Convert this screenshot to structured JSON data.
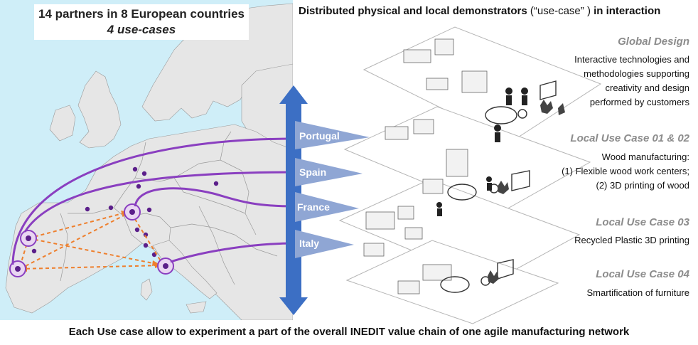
{
  "map_box": {
    "line1": "14 partners in 8 European countries",
    "line2": "4 use-cases"
  },
  "header": {
    "title_main": "Distributed physical and local demonstrators",
    "title_quote": "(“use-case” )",
    "title_end": "in interaction"
  },
  "countries": [
    "Portugal",
    "Spain",
    "France",
    "Italy"
  ],
  "use_cases": [
    {
      "title": "Global Design",
      "desc": [
        "Interactive technologies and",
        "methodologies supporting",
        "creativity and design",
        "performed by customers"
      ]
    },
    {
      "title": "Local Use Case 01 & 02",
      "desc": [
        "Wood manufacturing:",
        "(1) Flexible wood work centers;",
        "(2) 3D printing of wood"
      ]
    },
    {
      "title": "Local Use Case 03",
      "desc": [
        "Recycled Plastic 3D printing"
      ]
    },
    {
      "title": "Local Use Case 04",
      "desc": [
        "Smartification of furniture"
      ]
    }
  ],
  "footer": {
    "caption": "Each Use case allow to experiment a part of the overall INEDIT value chain of one agile manufacturing network"
  },
  "colors": {
    "sea": "#cfeef8",
    "land": "#e6e6e6",
    "arrow": "#3c6fc4",
    "link": "#8a3fc0",
    "dashed": "#ee7f2d",
    "triangle": "#8fa6d4"
  }
}
